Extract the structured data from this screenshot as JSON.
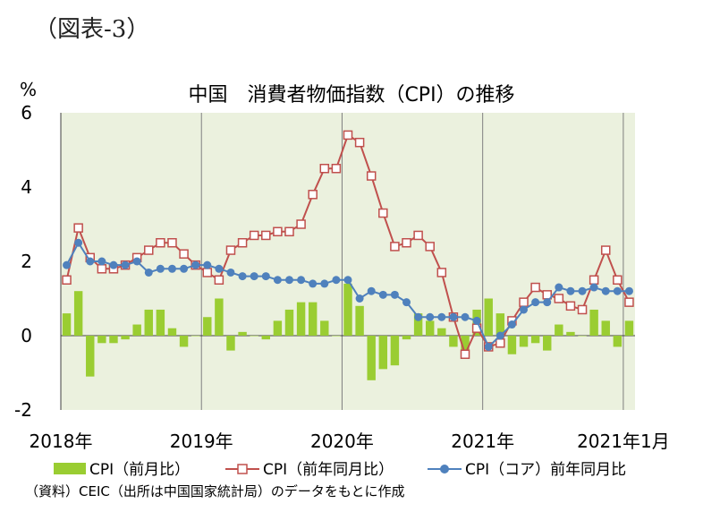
{
  "figure_label": "（図表-3）",
  "unit_label": "%",
  "source_note": "（資料）CEIC（出所は中国国家統計局）のデータをもとに作成",
  "colors": {
    "bar": "#9acd32",
    "line_cpi": "#c0504d",
    "line_core": "#4f81bd",
    "plot_bg": "#ebf1de",
    "grid": "#7f7f7f"
  },
  "chart_data": {
    "type": "bar+line",
    "title": "中国　消費者物価指数（CPI）の推移",
    "ylim": [
      -2,
      6
    ],
    "y_ticks": [
      "-2",
      "0",
      "2",
      "4",
      "6"
    ],
    "x_tick_labels": [
      {
        "index": 0,
        "label": "2018年"
      },
      {
        "index": 12,
        "label": "2019年"
      },
      {
        "index": 24,
        "label": "2020年"
      },
      {
        "index": 36,
        "label": "2021年"
      },
      {
        "index": 48,
        "label": "2021年1月"
      }
    ],
    "months": 49,
    "legend_position": "bottom",
    "series": [
      {
        "name": "CPI（前月比）",
        "type": "bar",
        "values": [
          0.6,
          1.2,
          -1.1,
          -0.2,
          -0.2,
          -0.1,
          0.3,
          0.7,
          0.7,
          0.2,
          -0.3,
          0.0,
          0.5,
          1.0,
          -0.4,
          0.1,
          0.0,
          -0.1,
          0.4,
          0.7,
          0.9,
          0.9,
          0.4,
          0.0,
          1.4,
          0.8,
          -1.2,
          -0.9,
          -0.8,
          -0.1,
          0.6,
          0.4,
          0.2,
          -0.3,
          -0.5,
          0.7,
          1.0,
          0.6,
          -0.5,
          -0.3,
          -0.2,
          -0.4,
          0.3,
          0.1,
          0.0,
          0.7,
          0.4,
          -0.3,
          0.4
        ]
      },
      {
        "name": "CPI（前年同月比）",
        "type": "line",
        "values": [
          1.5,
          2.9,
          2.1,
          1.8,
          1.8,
          1.9,
          2.1,
          2.3,
          2.5,
          2.5,
          2.2,
          1.9,
          1.7,
          1.5,
          2.3,
          2.5,
          2.7,
          2.7,
          2.8,
          2.8,
          3.0,
          3.8,
          4.5,
          4.5,
          5.4,
          5.2,
          4.3,
          3.3,
          2.4,
          2.5,
          2.7,
          2.4,
          1.7,
          0.5,
          -0.5,
          0.2,
          -0.3,
          -0.2,
          0.4,
          0.9,
          1.3,
          1.1,
          1.0,
          0.8,
          0.7,
          1.5,
          2.3,
          1.5,
          0.9
        ]
      },
      {
        "name": "CPI（コア）前年同月比",
        "type": "line",
        "values": [
          1.9,
          2.5,
          2.0,
          2.0,
          1.9,
          1.9,
          2.0,
          1.7,
          1.8,
          1.8,
          1.8,
          1.9,
          1.9,
          1.8,
          1.7,
          1.6,
          1.6,
          1.6,
          1.5,
          1.5,
          1.5,
          1.4,
          1.4,
          1.5,
          1.5,
          1.0,
          1.2,
          1.1,
          1.1,
          0.9,
          0.5,
          0.5,
          0.5,
          0.5,
          0.5,
          0.4,
          -0.3,
          0.0,
          0.3,
          0.7,
          0.9,
          0.9,
          1.3,
          1.2,
          1.2,
          1.3,
          1.2,
          1.2,
          1.2
        ]
      }
    ]
  }
}
